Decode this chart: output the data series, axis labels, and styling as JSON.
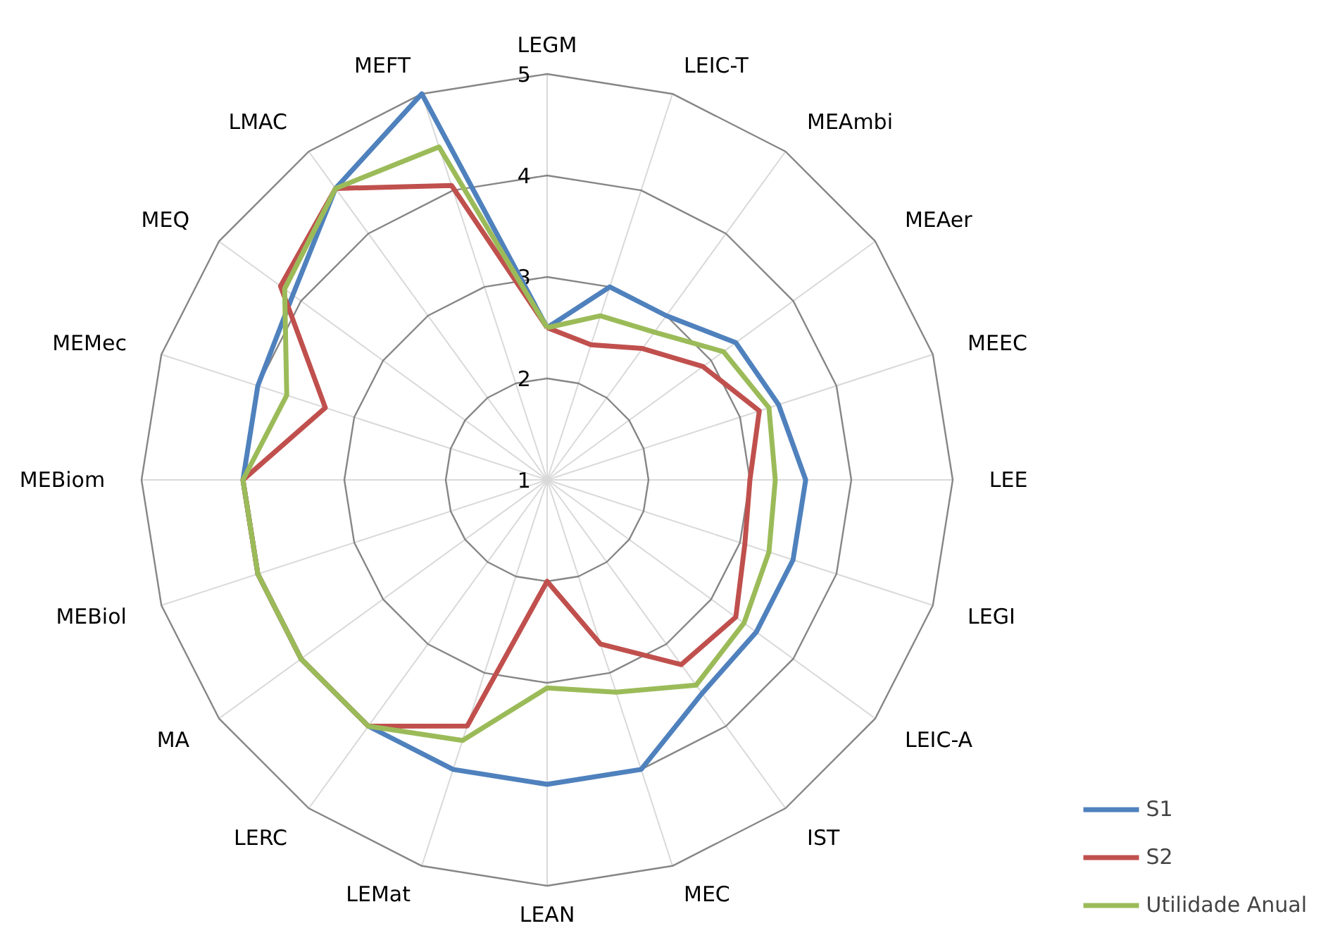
{
  "chart_data": {
    "type": "radar",
    "categories": [
      "LEGM",
      "LEIC-T",
      "MEAmbi",
      "MEAer",
      "MEEC",
      "LEE",
      "LEGI",
      "LEIC-A",
      "IST",
      "MEC",
      "LEAN",
      "LEMat",
      "LERC",
      "MA",
      "MEBiol",
      "MEBiom",
      "MEMec",
      "MEQ",
      "LMAC",
      "MEFT"
    ],
    "ylim": [
      1,
      5
    ],
    "yticks": [
      1,
      2,
      3,
      4,
      5
    ],
    "grid": true,
    "legend": "bottom right",
    "marker": "none",
    "line_style": "solid",
    "series": [
      {
        "name": "S1",
        "color": "#4f81bd",
        "values": [
          2.5,
          3.0,
          3.0,
          3.3,
          3.4,
          3.55,
          3.55,
          3.55,
          3.6,
          4.0,
          4.0,
          4.0,
          4.0,
          4.0,
          4.0,
          4.0,
          4.0,
          4.1,
          4.55,
          5.0
        ]
      },
      {
        "name": "S2",
        "color": "#c0504d",
        "values": [
          2.5,
          2.4,
          2.6,
          2.9,
          3.2,
          3.0,
          3.05,
          3.3,
          3.25,
          2.7,
          2.0,
          3.55,
          4.0,
          4.0,
          4.0,
          4.0,
          3.3,
          4.25,
          4.55,
          4.05
        ]
      },
      {
        "name": "Utilidade Anual",
        "color": "#9bbb59",
        "values": [
          2.5,
          2.7,
          2.8,
          3.15,
          3.3,
          3.25,
          3.3,
          3.4,
          3.5,
          3.2,
          3.05,
          3.7,
          4.0,
          4.0,
          4.0,
          4.0,
          3.7,
          4.2,
          4.55,
          4.45
        ]
      }
    ]
  }
}
